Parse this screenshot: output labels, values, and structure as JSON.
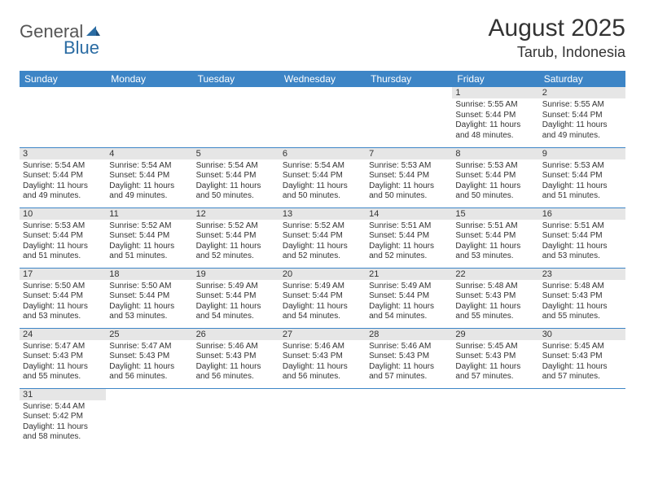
{
  "brand": {
    "part1": "General",
    "part2": "Blue"
  },
  "title": "August 2025",
  "location": "Tarub, Indonesia",
  "colors": {
    "header_bg": "#3d85c6",
    "header_text": "#ffffff",
    "daynum_bg": "#e6e6e6",
    "border": "#3d85c6",
    "text": "#333333",
    "page_bg": "#ffffff"
  },
  "weekdays": [
    "Sunday",
    "Monday",
    "Tuesday",
    "Wednesday",
    "Thursday",
    "Friday",
    "Saturday"
  ],
  "weeks": [
    [
      null,
      null,
      null,
      null,
      null,
      {
        "n": "1",
        "sr": "5:55 AM",
        "ss": "5:44 PM",
        "dl": "11 hours and 48 minutes."
      },
      {
        "n": "2",
        "sr": "5:55 AM",
        "ss": "5:44 PM",
        "dl": "11 hours and 49 minutes."
      }
    ],
    [
      {
        "n": "3",
        "sr": "5:54 AM",
        "ss": "5:44 PM",
        "dl": "11 hours and 49 minutes."
      },
      {
        "n": "4",
        "sr": "5:54 AM",
        "ss": "5:44 PM",
        "dl": "11 hours and 49 minutes."
      },
      {
        "n": "5",
        "sr": "5:54 AM",
        "ss": "5:44 PM",
        "dl": "11 hours and 50 minutes."
      },
      {
        "n": "6",
        "sr": "5:54 AM",
        "ss": "5:44 PM",
        "dl": "11 hours and 50 minutes."
      },
      {
        "n": "7",
        "sr": "5:53 AM",
        "ss": "5:44 PM",
        "dl": "11 hours and 50 minutes."
      },
      {
        "n": "8",
        "sr": "5:53 AM",
        "ss": "5:44 PM",
        "dl": "11 hours and 50 minutes."
      },
      {
        "n": "9",
        "sr": "5:53 AM",
        "ss": "5:44 PM",
        "dl": "11 hours and 51 minutes."
      }
    ],
    [
      {
        "n": "10",
        "sr": "5:53 AM",
        "ss": "5:44 PM",
        "dl": "11 hours and 51 minutes."
      },
      {
        "n": "11",
        "sr": "5:52 AM",
        "ss": "5:44 PM",
        "dl": "11 hours and 51 minutes."
      },
      {
        "n": "12",
        "sr": "5:52 AM",
        "ss": "5:44 PM",
        "dl": "11 hours and 52 minutes."
      },
      {
        "n": "13",
        "sr": "5:52 AM",
        "ss": "5:44 PM",
        "dl": "11 hours and 52 minutes."
      },
      {
        "n": "14",
        "sr": "5:51 AM",
        "ss": "5:44 PM",
        "dl": "11 hours and 52 minutes."
      },
      {
        "n": "15",
        "sr": "5:51 AM",
        "ss": "5:44 PM",
        "dl": "11 hours and 53 minutes."
      },
      {
        "n": "16",
        "sr": "5:51 AM",
        "ss": "5:44 PM",
        "dl": "11 hours and 53 minutes."
      }
    ],
    [
      {
        "n": "17",
        "sr": "5:50 AM",
        "ss": "5:44 PM",
        "dl": "11 hours and 53 minutes."
      },
      {
        "n": "18",
        "sr": "5:50 AM",
        "ss": "5:44 PM",
        "dl": "11 hours and 53 minutes."
      },
      {
        "n": "19",
        "sr": "5:49 AM",
        "ss": "5:44 PM",
        "dl": "11 hours and 54 minutes."
      },
      {
        "n": "20",
        "sr": "5:49 AM",
        "ss": "5:44 PM",
        "dl": "11 hours and 54 minutes."
      },
      {
        "n": "21",
        "sr": "5:49 AM",
        "ss": "5:44 PM",
        "dl": "11 hours and 54 minutes."
      },
      {
        "n": "22",
        "sr": "5:48 AM",
        "ss": "5:43 PM",
        "dl": "11 hours and 55 minutes."
      },
      {
        "n": "23",
        "sr": "5:48 AM",
        "ss": "5:43 PM",
        "dl": "11 hours and 55 minutes."
      }
    ],
    [
      {
        "n": "24",
        "sr": "5:47 AM",
        "ss": "5:43 PM",
        "dl": "11 hours and 55 minutes."
      },
      {
        "n": "25",
        "sr": "5:47 AM",
        "ss": "5:43 PM",
        "dl": "11 hours and 56 minutes."
      },
      {
        "n": "26",
        "sr": "5:46 AM",
        "ss": "5:43 PM",
        "dl": "11 hours and 56 minutes."
      },
      {
        "n": "27",
        "sr": "5:46 AM",
        "ss": "5:43 PM",
        "dl": "11 hours and 56 minutes."
      },
      {
        "n": "28",
        "sr": "5:46 AM",
        "ss": "5:43 PM",
        "dl": "11 hours and 57 minutes."
      },
      {
        "n": "29",
        "sr": "5:45 AM",
        "ss": "5:43 PM",
        "dl": "11 hours and 57 minutes."
      },
      {
        "n": "30",
        "sr": "5:45 AM",
        "ss": "5:43 PM",
        "dl": "11 hours and 57 minutes."
      }
    ],
    [
      {
        "n": "31",
        "sr": "5:44 AM",
        "ss": "5:42 PM",
        "dl": "11 hours and 58 minutes."
      },
      null,
      null,
      null,
      null,
      null,
      null
    ]
  ],
  "labels": {
    "sunrise": "Sunrise:",
    "sunset": "Sunset:",
    "daylight": "Daylight:"
  }
}
